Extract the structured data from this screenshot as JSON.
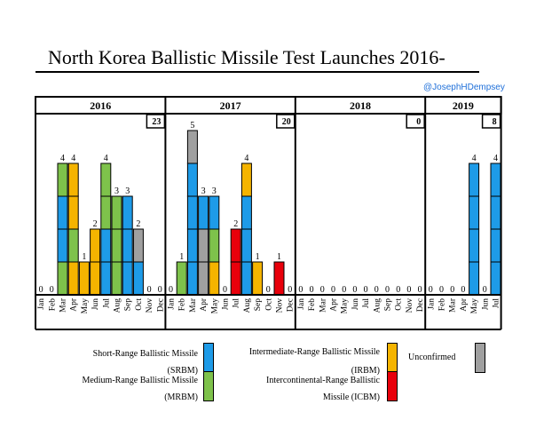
{
  "title": "North Korea Ballistic Missile Test Launches 2016-",
  "handle": "@JosephHDempsey",
  "chart_data": {
    "type": "bar",
    "stacked": true,
    "title": "North Korea Ballistic Missile Test Launches 2016-",
    "years": [
      {
        "label": "2016",
        "total": "23",
        "months": [
          "Jan",
          "Feb",
          "Mar",
          "Apr",
          "May",
          "Jun",
          "Jul",
          "Aug",
          "Sep",
          "Oct",
          "Nov",
          "Dec"
        ]
      },
      {
        "label": "2017",
        "total": "20",
        "months": [
          "Jan",
          "Feb",
          "Mar",
          "Apr",
          "May",
          "Jun",
          "Jul",
          "Aug",
          "Sep",
          "Oct",
          "Nov",
          "Dec"
        ]
      },
      {
        "label": "2018",
        "total": "0",
        "months": [
          "Jan",
          "Feb",
          "Mar",
          "Apr",
          "May",
          "Jun",
          "Jul",
          "Aug",
          "Sep",
          "Oct",
          "Nov",
          "Dec"
        ]
      },
      {
        "label": "2019",
        "total": "8",
        "months": [
          "Jan",
          "Feb",
          "Mar",
          "Apr",
          "May",
          "Jun",
          "Jul"
        ]
      }
    ],
    "ylim": [
      0,
      5
    ],
    "series_colors": {
      "srbm": "#1e9be8",
      "mrbm": "#7ec24b",
      "irbm": "#f5b400",
      "icbm": "#e8000b",
      "unconfirmed": "#a0a0a0"
    },
    "monthly_stacks": [
      [],
      [],
      [
        "mrbm",
        "srbm",
        "srbm",
        "mrbm"
      ],
      [
        "irbm",
        "mrbm",
        "irbm",
        "irbm"
      ],
      [
        "irbm"
      ],
      [
        "irbm",
        "irbm"
      ],
      [
        "srbm",
        "srbm",
        "mrbm",
        "mrbm"
      ],
      [
        "mrbm",
        "mrbm",
        "mrbm"
      ],
      [
        "srbm",
        "srbm",
        "srbm"
      ],
      [
        "srbm",
        "unconfirmed"
      ],
      [],
      [],
      [],
      [
        "mrbm"
      ],
      [
        "srbm",
        "srbm",
        "srbm",
        "srbm",
        "unconfirmed"
      ],
      [
        "unconfirmed",
        "unconfirmed",
        "srbm"
      ],
      [
        "irbm",
        "mrbm",
        "srbm"
      ],
      [],
      [
        "icbm",
        "icbm"
      ],
      [
        "srbm",
        "srbm",
        "srbm",
        "irbm"
      ],
      [
        "irbm"
      ],
      [],
      [
        "icbm"
      ],
      [],
      [],
      [],
      [],
      [],
      [],
      [],
      [],
      [],
      [],
      [],
      [],
      [],
      [],
      [],
      [],
      [],
      [
        "srbm",
        "srbm",
        "srbm",
        "srbm"
      ],
      [],
      [
        "srbm",
        "srbm",
        "srbm",
        "srbm"
      ]
    ],
    "legend": [
      {
        "key": "srbm",
        "line1": "Short-Range Ballistic Missile",
        "line2": "(SRBM)"
      },
      {
        "key": "mrbm",
        "line1": "Medium-Range Ballistic Missile",
        "line2": "(MRBM)"
      },
      {
        "key": "irbm",
        "line1": "Intermediate-Range Ballistic Missile",
        "line2": "(IRBM)"
      },
      {
        "key": "icbm",
        "line1": "Intercontinental-Range Ballistic",
        "line2": "Missile (ICBM)"
      },
      {
        "key": "unconfirmed",
        "line1": "Unconfirmed",
        "line2": ""
      }
    ]
  }
}
